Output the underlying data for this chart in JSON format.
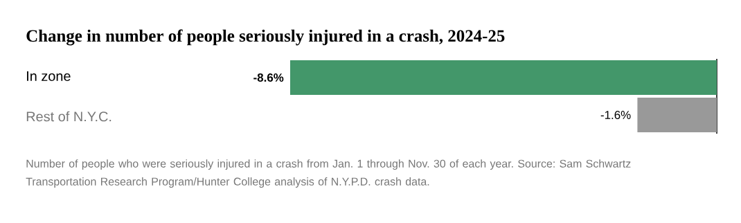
{
  "chart_data": {
    "type": "bar",
    "orientation": "horizontal",
    "title": "Change in number of people seriously injured in a crash, 2024-25",
    "categories": [
      "In zone",
      "Rest of N.Y.C."
    ],
    "values": [
      -8.6,
      -1.6
    ],
    "colors": [
      "#43976a",
      "#999999"
    ],
    "value_labels": [
      "-8.6%",
      "-1.6%"
    ],
    "annotations": [
      "Number of people who were seriously injured in a crash from Jan. 1 through Nov. 30 of each year. Source: Sam Schwartz Transportation Research Program/Hunter College analysis of N.Y.P.D. crash data."
    ]
  }
}
